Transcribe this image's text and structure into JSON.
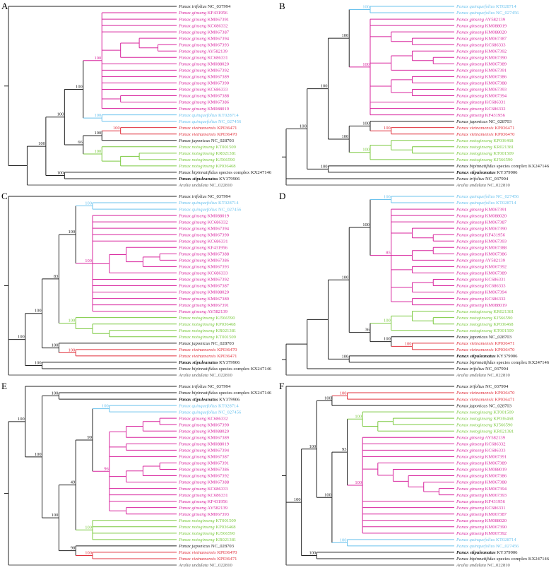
{
  "species": {
    "g": {
      "name": "Panax ginseng",
      "color": "#d8259e"
    },
    "q": {
      "name": "Panax quinquefolius",
      "color": "#6cc3ee"
    },
    "v": {
      "name": "Panax vietnamensis",
      "color": "#e0303c"
    },
    "n": {
      "name": "Panax notoginseng",
      "color": "#7cc940"
    },
    "j": {
      "name": "Panax japonicus",
      "color": "#222222"
    },
    "b": {
      "name": "Panax bipinnatifidus",
      "suffix": "species complex",
      "color": "#222222"
    },
    "s": {
      "name": "Panax stipuleanatus",
      "color": "#222222",
      "bold": true
    },
    "t": {
      "name": "Panax trifolius",
      "color": "#222222"
    },
    "a": {
      "name": "Aralia undulata",
      "color": "#555555"
    }
  },
  "panels": [
    {
      "label": "A",
      "tree": "(t|NC_037994,(((((g|KF431956,g|KM067391,g|KC686332,g|KM067387,((g|KM067394,(g|KM067393,g|AY582139)),g|KC686331),g|KM088020,g|KM067392,g|KM067389,g|KM067390,g|KC686333,(g|KM067388,g|KM067386),g|KM088019)100,(q|KT028714,q|NC_027456)100)100,(((v|KP036471,v|KP036470)100,j|NC_028703)100,(n|KT001509,((n|KR021381,n|KJ566590),n|KP036468))100)66)100,(b|KX247146,s|KY379906)100)100,a|NC_022810)"
    },
    {
      "label": "B",
      "tree": "(((((q|KT028714,q|NC_027456)100,(g|AY582139,g|KM088019,(g|KM088020,(g|KM067387,g|KC686333)),((g|KM067392,(g|KM067390,g|KM067389)),g|KM067391),((g|KM067386,g|KM067388),(g|KM067393,g|KM067394)),g|KC686331,g|KC686332,g|KF431956)100)100,((j|NC_028703,(v|KP036471,v|KP036470)100)100,((n|KP036468,(n|KR021381,n|KT001509)),n|KJ566590)100)100)100,(b|KX247146,s|KY379906)100)100,t|NC_037994,a|NC_022810)"
    },
    {
      "label": "C",
      "tree": "(t|NC_037994,(((((q|KT028714,q|NC_027456)100,(g|KM088019,g|KC686332,g|KM067394,g|KM067390,g|KC686331,((g|KF431956,((g|KM067388,g|KM067386),g|KM067393)),g|KC686333),g|KM067392,g|KM067387,g|KM088020,g|KM067389,g|KM067391,g|AY582139)100)100,(n|KJ566590,(n|KP036468,(n|KR021381,n|KT001509)))100)83,(j|NC_028703,(v|KP036470,v|KP036471)100)100)100,(s|KY379906,b|KX247146)100)100,a|NC_022810)"
    },
    {
      "label": "D",
      "tree": "((((((q|NC_027456,q|KT028714)100,(g|KM067391,g|KM088020,g|KM067387,(g|KM067390,(g|KF431956,g|KM067393)),((g|KM067388,g|KM067386),g|AY582139),(g|KM067392,g|KM067389),((g|KC686331,g|KC686333),g|KM067394),(g|KC686332,g|KM088019))85)100,(((n|KR021381,(n|KJ566590,n|KP036468)),n|KT001509)100,(j|NC_028703,(v|KP036471,v|KP036470)100)100)36)100,(s|KY379906,b|KX247146)100),t|NC_037994),a|NC_022810)"
    },
    {
      "label": "E",
      "tree": "((t|NC_037994,((b|KX247146,s|KY379906)100,((((q|KT028714,q|NC_027456)100,((((g|KC686332,g|KM067390),g|KM088020),g|KM067389),(g|KM088019,g|KM067394),g|KM067387,(((g|KM067391,g|KM067386),g|KM067392),g|KM067388),g|KC686333,g|KC686331,g|KF431956,(g|AY582139,g|KM067393))96)99,(n|KT001509,n|KP036468,n|KJ566590,n|KR021381)100)49,(j|NC_028703,(v|KP036470,v|KP036471)100)98)100)100)100,a|NC_022810)"
    },
    {
      "label": "F",
      "tree": "(t|NC_037994,((((v|KP036470,v|KP036471)100,j|NC_028703)100,(((n|KT001509,((n|KP036468,n|KJ566590),n|KR021381))100,(g|AY582139,g|KC686332,g|KC686333,g|KM067391,(g|KM067389,(g|KM088019,(g|KM067386,(g|KM067388,(g|KM067394,g|KM067393))))),g|KF431956,g|KC686331,g|KM067387,g|KM088020,g|KM067390,g|KM067392)100)93,(q|KT028714,q|NC_027456)100)100)100,(s|KY379906,b|KX247146)100)100,a|NC_022810)"
    }
  ]
}
